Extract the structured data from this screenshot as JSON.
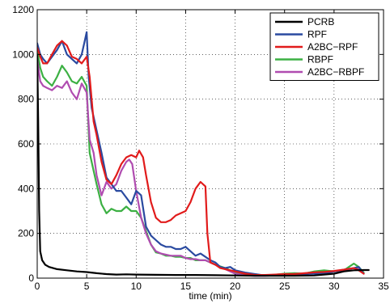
{
  "chart_data": {
    "type": "line",
    "title": "",
    "xlabel": "time (min)",
    "ylabel": "",
    "xlim": [
      0,
      35
    ],
    "ylim": [
      0,
      1200
    ],
    "xticks": [
      0,
      5,
      10,
      15,
      20,
      25,
      30,
      35
    ],
    "yticks": [
      0,
      200,
      400,
      600,
      800,
      1000,
      1200
    ],
    "grid": true,
    "legend_position": "top-right",
    "series": [
      {
        "name": "PCRB",
        "color": "#000000",
        "x": [
          0,
          0.1,
          0.2,
          0.3,
          0.5,
          0.8,
          1.2,
          2,
          3,
          4,
          5,
          6,
          7,
          8,
          9,
          10,
          12,
          14,
          16,
          18,
          20,
          22,
          24,
          26,
          28,
          30,
          31,
          32,
          33,
          33.5
        ],
        "y": [
          1000,
          700,
          300,
          120,
          80,
          60,
          50,
          40,
          35,
          30,
          27,
          22,
          18,
          16,
          17,
          16,
          15,
          14,
          14,
          13,
          12,
          11,
          11,
          11,
          12,
          20,
          30,
          35,
          36,
          36
        ]
      },
      {
        "name": "RPF",
        "color": "#2a4aa0",
        "x": [
          0,
          0.3,
          0.6,
          1,
          1.5,
          2,
          2.5,
          3,
          3.5,
          4,
          4.5,
          4.8,
          5,
          5.2,
          5.5,
          6,
          6.5,
          7,
          7.5,
          8,
          8.5,
          9,
          9.5,
          10,
          10.5,
          11,
          11.5,
          12,
          12.5,
          13,
          13.5,
          14,
          14.5,
          15,
          15.5,
          16,
          16.5,
          17,
          17.5,
          18,
          18.5,
          19,
          19.5,
          20,
          21,
          22,
          23,
          24,
          25,
          26,
          27,
          28,
          29,
          30,
          31,
          32,
          32.5,
          33
        ],
        "y": [
          1050,
          1000,
          980,
          960,
          990,
          1020,
          1060,
          1000,
          980,
          960,
          1000,
          1060,
          1100,
          900,
          760,
          660,
          560,
          450,
          420,
          390,
          390,
          360,
          330,
          390,
          370,
          230,
          190,
          170,
          150,
          140,
          140,
          130,
          130,
          140,
          120,
          100,
          110,
          95,
          80,
          70,
          50,
          45,
          50,
          35,
          25,
          18,
          12,
          12,
          15,
          18,
          18,
          20,
          20,
          30,
          35,
          45,
          50,
          20
        ]
      },
      {
        "name": "A2BC−RPF",
        "color": "#e11b1b",
        "x": [
          0,
          0.3,
          0.6,
          1,
          1.5,
          2,
          2.5,
          3,
          3.5,
          4,
          4.5,
          5,
          5.3,
          5.7,
          6,
          6.5,
          7,
          7.5,
          8,
          8.5,
          9,
          9.5,
          10,
          10.3,
          10.7,
          11,
          11.5,
          12,
          12.5,
          13,
          13.5,
          14,
          14.5,
          15,
          15.5,
          16,
          16.5,
          17,
          17.2,
          17.5,
          18,
          18.5,
          19,
          19.5,
          20,
          21,
          22,
          23,
          24,
          25,
          26,
          27,
          28,
          29,
          30,
          31,
          32,
          32.5,
          33
        ],
        "y": [
          1030,
          990,
          960,
          960,
          1000,
          1040,
          1060,
          1040,
          990,
          980,
          960,
          990,
          900,
          700,
          640,
          520,
          440,
          420,
          460,
          510,
          540,
          550,
          540,
          570,
          540,
          460,
          340,
          270,
          250,
          250,
          260,
          280,
          290,
          300,
          340,
          400,
          430,
          410,
          200,
          70,
          60,
          45,
          40,
          35,
          30,
          20,
          14,
          14,
          16,
          18,
          18,
          22,
          26,
          28,
          32,
          38,
          45,
          35,
          20
        ]
      },
      {
        "name": "RBPF",
        "color": "#3cb043",
        "x": [
          0,
          0.3,
          0.6,
          1,
          1.5,
          2,
          2.5,
          3,
          3.5,
          4,
          4.5,
          5,
          5.3,
          5.7,
          6,
          6.5,
          7,
          7.5,
          8,
          8.5,
          9,
          9.5,
          10,
          10.5,
          11,
          11.5,
          12,
          12.5,
          13,
          13.5,
          14,
          14.5,
          15,
          15.5,
          16,
          16.5,
          17,
          17.5,
          18,
          19,
          20,
          21,
          22,
          23,
          24,
          25,
          26,
          27,
          28,
          29,
          30,
          31,
          32,
          32.5,
          33
        ],
        "y": [
          1020,
          940,
          900,
          880,
          860,
          900,
          950,
          920,
          880,
          870,
          900,
          860,
          560,
          480,
          420,
          330,
          290,
          310,
          300,
          300,
          320,
          300,
          300,
          270,
          210,
          150,
          115,
          110,
          100,
          100,
          95,
          95,
          90,
          90,
          80,
          80,
          80,
          70,
          60,
          45,
          25,
          18,
          12,
          12,
          15,
          20,
          22,
          20,
          30,
          35,
          30,
          35,
          65,
          50,
          25
        ]
      },
      {
        "name": "A2BC−RBPF",
        "color": "#b04cb0",
        "x": [
          0,
          0.3,
          0.6,
          1,
          1.5,
          2,
          2.5,
          3,
          3.5,
          4,
          4.5,
          5,
          5.3,
          5.7,
          6,
          6.5,
          7,
          7.5,
          8,
          8.5,
          9,
          9.3,
          9.6,
          10,
          10.5,
          11,
          11.5,
          12,
          12.5,
          13,
          13.5,
          14,
          14.5,
          15,
          15.5,
          16,
          16.5,
          17,
          17.5,
          18,
          19,
          20,
          21,
          22,
          23,
          24,
          25,
          26,
          27,
          28,
          29,
          30,
          31,
          32,
          32.5,
          33
        ],
        "y": [
          980,
          880,
          860,
          850,
          840,
          860,
          850,
          880,
          830,
          800,
          870,
          830,
          620,
          560,
          460,
          370,
          430,
          400,
          420,
          480,
          520,
          530,
          510,
          390,
          270,
          200,
          150,
          120,
          110,
          105,
          100,
          100,
          100,
          90,
          85,
          85,
          80,
          80,
          70,
          60,
          40,
          20,
          12,
          10,
          10,
          12,
          15,
          18,
          20,
          20,
          25,
          30,
          38,
          45,
          40,
          20
        ]
      }
    ]
  }
}
